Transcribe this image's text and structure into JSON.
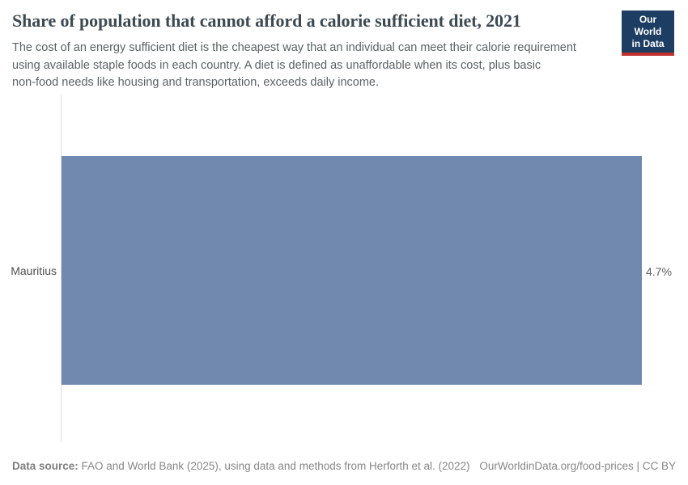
{
  "header": {
    "title": "Share of population that cannot afford a calorie sufficient diet, 2021",
    "subtitle_lines": [
      "The cost of an energy sufficient diet is the cheapest way that an individual can meet their calorie requirement",
      "using available staple foods in each country. A diet is defined as unaffordable when its cost, plus basic",
      "non-food needs like housing and transportation, exceeds daily income."
    ],
    "logo": {
      "line1": "Our World",
      "line2": "in Data",
      "bg_color": "#1d3d63",
      "stripe_color": "#c1302b"
    }
  },
  "chart_data": {
    "type": "bar",
    "orientation": "horizontal",
    "title": "Share of population that cannot afford a calorie sufficient diet, 2021",
    "year": "2021",
    "categories": [
      "Mauritius"
    ],
    "values": [
      4.7
    ],
    "value_labels": [
      "4.7%"
    ],
    "unit": "%",
    "xlim": [
      0,
      4.7
    ],
    "grid": false,
    "legend": "none",
    "bar_color": "#7189ae",
    "axis_line_color": "#dddddd"
  },
  "footer": {
    "source_label": "Data source:",
    "source_text": " FAO and World Bank (2025), using data and methods from Herforth et al. (2022)",
    "rights_text": "OurWorldinData.org/food-prices | CC BY"
  }
}
